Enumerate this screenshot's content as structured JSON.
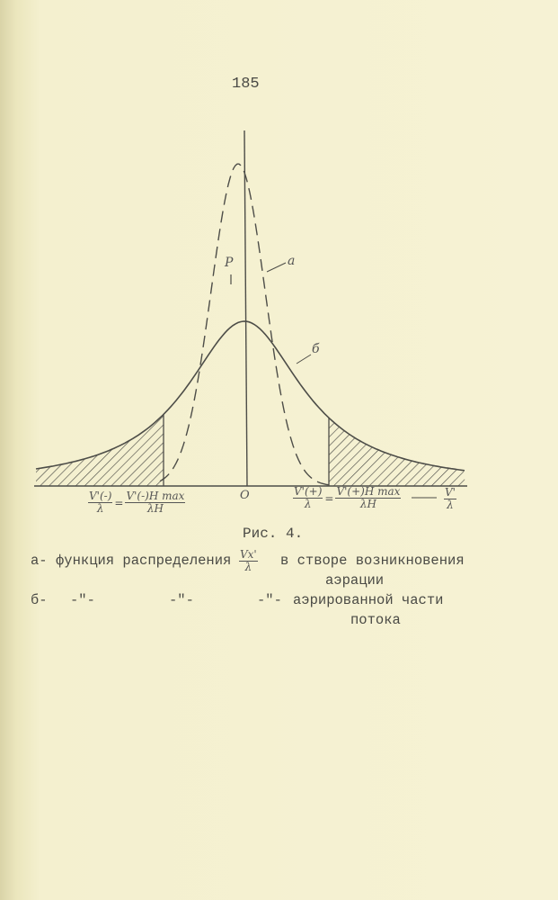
{
  "page_number": "185",
  "figure": {
    "caption": "Рис. 4.",
    "origin_label": "O",
    "peak_label": "P",
    "curve_a_label": "a",
    "curve_b_label": "б",
    "left_bound": {
      "lhs_num": "V'(-)",
      "lhs_den": "λ",
      "eq": "=",
      "rhs_num": "V'(-)H max",
      "rhs_den": "λH"
    },
    "right_bound": {
      "lhs_num": "V'(+)",
      "lhs_den": "λ",
      "eq": "=",
      "rhs_num": "V'(+)H max",
      "rhs_den": "λH"
    },
    "axis_label": {
      "num": "V'",
      "den": "λ"
    },
    "ink_color": "#4d4d48",
    "paper_color": "#f6f2d4"
  },
  "legend": [
    {
      "key": "a-",
      "text": "функция распределения",
      "var_num": "Vx'",
      "var_den": "λ",
      "tail": "в створе возникновения",
      "tail2": "аэрации"
    },
    {
      "key": "б-",
      "ditto1": "-\"-",
      "ditto2": "-\"-",
      "ditto3": "-\"-",
      "tail": "аэрированной части",
      "tail2": "потока"
    }
  ]
}
